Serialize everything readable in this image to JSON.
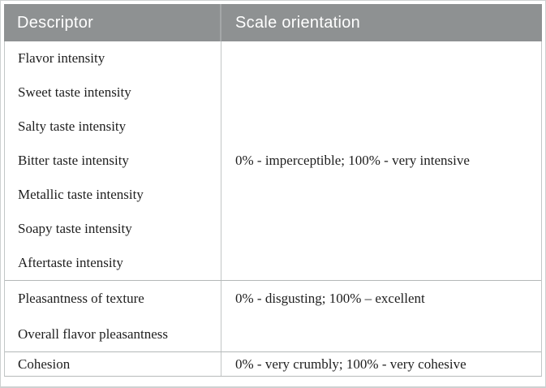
{
  "table": {
    "columns": [
      {
        "label": "Descriptor"
      },
      {
        "label": "Scale orientation"
      }
    ],
    "groups": [
      {
        "descriptors": [
          "Flavor intensity",
          "Sweet taste intensity",
          "Salty taste intensity",
          "Bitter taste intensity",
          "Metallic taste intensity",
          "Soapy taste intensity",
          "Aftertaste intensity"
        ],
        "scale": "0% - imperceptible; 100% - very intensive"
      },
      {
        "descriptors": [
          "Pleasantness of texture",
          "Overall flavor pleasantness"
        ],
        "scale": "0% - disgusting; 100% – excellent"
      },
      {
        "descriptors": [
          "Cohesion"
        ],
        "scale": "0% - very crumbly; 100% - very cohesive"
      }
    ]
  },
  "colors": {
    "header_bg": "#8e9192",
    "header_text": "#ffffff",
    "body_text": "#1e1e1e",
    "body_border": "#c2c6c6",
    "group_rule": "#b4b8b8",
    "outer_frame": "#cdd1d1"
  }
}
